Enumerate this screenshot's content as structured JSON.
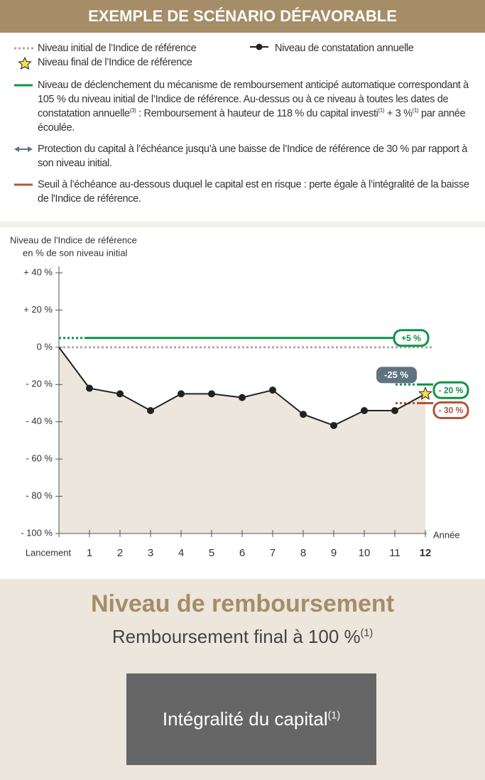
{
  "header": {
    "title": "EXEMPLE DE SCÉNARIO DÉFAVORABLE"
  },
  "chart_data": {
    "type": "line",
    "legend": [
      [
        "Niveau initial de l’Indice de référence"
      ],
      [
        "Niveau final de l’Indice de référence"
      ],
      [
        "Niveau de déclenchement du mécanisme de remboursement anticipé automatique correspondant à 105 % du niveau initial de l’Indice de référence. Au-dessus ou à ce niveau à toutes les dates de constatation annuelle",
        {
          "sup": "(3)"
        },
        " : Remboursement à hauteur de 118 % du capital investi",
        {
          "sup": "(1)"
        },
        " + 3 %",
        {
          "sup": "(1)"
        },
        " par année écoulée."
      ],
      [
        "Protection du capital à l’échéance jusqu’à une baisse de l’Indice de référence de 30 % par rapport à son niveau initial."
      ],
      [
        "Seuil à l’échéance au-dessous duquel le capital est en risque : perte égale à l’intégralité de la baisse de l'Indice de référence."
      ]
    ],
    "y_label": [
      "Niveau de l'Indice de référence",
      "en % de son niveau initial"
    ],
    "x_label": "Année",
    "categories": [
      "Lancement",
      "1",
      "2",
      "3",
      "4",
      "5",
      "6",
      "7",
      "8",
      "9",
      "10",
      "11",
      "12"
    ],
    "series": [
      {
        "name": "Niveau de constatation annuelle",
        "color": "#222222",
        "values": [
          0,
          -22,
          -25,
          -34,
          -25,
          -25,
          -27,
          -23,
          -36,
          -42,
          -34,
          -34,
          -25
        ],
        "value_labels": [
          null,
          null,
          null,
          null,
          null,
          null,
          null,
          null,
          null,
          null,
          null,
          null,
          "-25 %"
        ]
      }
    ],
    "area_color": "#ede6dc",
    "ylim": [
      -100,
      40
    ],
    "yticks": [
      {
        "value": 40,
        "label": "+ 40 %"
      },
      {
        "value": 20,
        "label": "+ 20 %"
      },
      {
        "value": 0,
        "label": "0 %"
      },
      {
        "value": -20,
        "label": "- 20 %"
      },
      {
        "value": -40,
        "label": "- 40 %"
      },
      {
        "value": -60,
        "label": "- 60 %"
      },
      {
        "value": -80,
        "label": "- 80 %"
      },
      {
        "value": -100,
        "label": "- 100 %"
      }
    ],
    "reference_lines": [
      {
        "value": 0,
        "color": "#aaaaaa"
      },
      {
        "value": 5,
        "label": "+5 %",
        "color": "#0e9347"
      },
      {
        "value": -20,
        "label": "- 20 %",
        "color": "#0e9347"
      },
      {
        "value": -30,
        "label": "- 30 %",
        "color": "#b4533a"
      }
    ]
  },
  "result": {
    "title": "Niveau de remboursement",
    "subtitle": [
      "Remboursement final à 100 %",
      {
        "sup": "(1)"
      }
    ],
    "box": [
      "Intégralité du capital",
      {
        "sup": "(1)"
      }
    ]
  }
}
